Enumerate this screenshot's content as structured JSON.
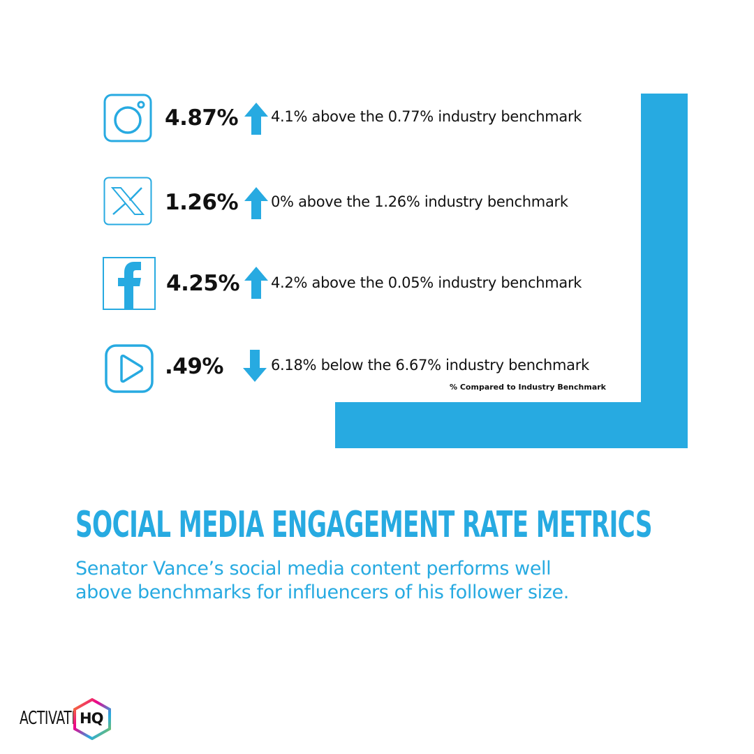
{
  "colors": {
    "accent": "#27aae1",
    "text": "#111111"
  },
  "metrics": [
    {
      "platform": "Instagram",
      "icon": "instagram-icon",
      "rate": "4.87%",
      "direction": "up",
      "description": "4.1% above the 0.77% industry benchmark"
    },
    {
      "platform": "X",
      "icon": "x-icon",
      "rate": "1.26%",
      "direction": "up",
      "description": "0% above the 1.26% industry benchmark"
    },
    {
      "platform": "Facebook",
      "icon": "facebook-icon",
      "rate": "4.25%",
      "direction": "up",
      "description": "4.2% above the 0.05% industry benchmark"
    },
    {
      "platform": "YouTube",
      "icon": "play-icon",
      "rate": ".49%",
      "direction": "down",
      "description": "6.18% below the 6.67% industry benchmark"
    }
  ],
  "footnote": "% Compared to Industry Benchmark",
  "headline": "SOCIAL MEDIA ENGAGEMENT RATE METRICS",
  "subtext": {
    "line1": "Senator Vance’s social media content performs well",
    "line2": "above benchmarks for influencers of his follower size."
  },
  "logo": {
    "word": "ACTIVATE",
    "mark": "HQ"
  }
}
